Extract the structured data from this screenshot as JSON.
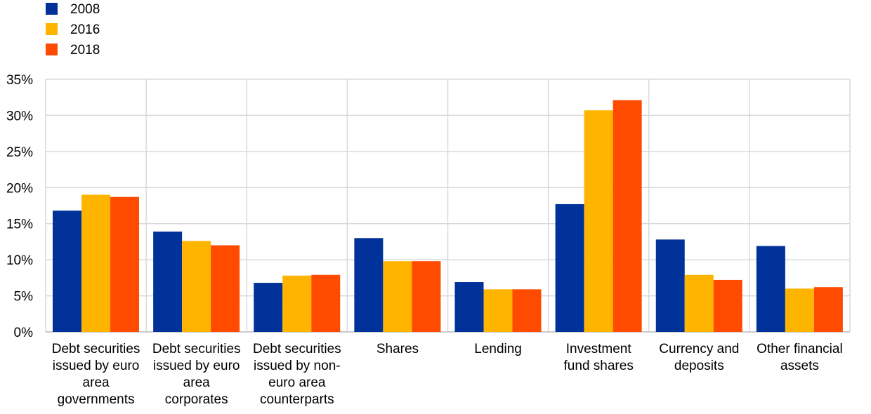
{
  "chart_data": {
    "type": "bar",
    "title": "",
    "xlabel": "",
    "ylabel": "",
    "ylim": [
      0,
      35
    ],
    "yticks": [
      0,
      5,
      10,
      15,
      20,
      25,
      30,
      35
    ],
    "ytick_labels": [
      "0%",
      "5%",
      "10%",
      "15%",
      "20%",
      "25%",
      "30%",
      "35%"
    ],
    "grid": true,
    "legend_position": "top-left",
    "categories": [
      [
        "Debt securities",
        "issued by euro",
        "area",
        "governments"
      ],
      [
        "Debt securities",
        "issued by euro",
        "area",
        "corporates"
      ],
      [
        "Debt securities",
        "issued by non-",
        "euro area",
        "counterparts"
      ],
      [
        "Shares"
      ],
      [
        "Lending"
      ],
      [
        "Investment",
        "fund shares"
      ],
      [
        "Currency and",
        "deposits"
      ],
      [
        "Other financial",
        "assets"
      ]
    ],
    "series": [
      {
        "name": "2008",
        "color": "#003299",
        "values": [
          16.8,
          13.9,
          6.8,
          13.0,
          6.9,
          17.7,
          12.8,
          11.9
        ]
      },
      {
        "name": "2016",
        "color": "#FFB400",
        "values": [
          19.0,
          12.6,
          7.8,
          9.8,
          5.9,
          30.7,
          7.9,
          6.0
        ]
      },
      {
        "name": "2018",
        "color": "#FF4B00",
        "values": [
          18.7,
          12.0,
          7.9,
          9.8,
          5.9,
          32.1,
          7.2,
          6.2
        ]
      }
    ]
  }
}
